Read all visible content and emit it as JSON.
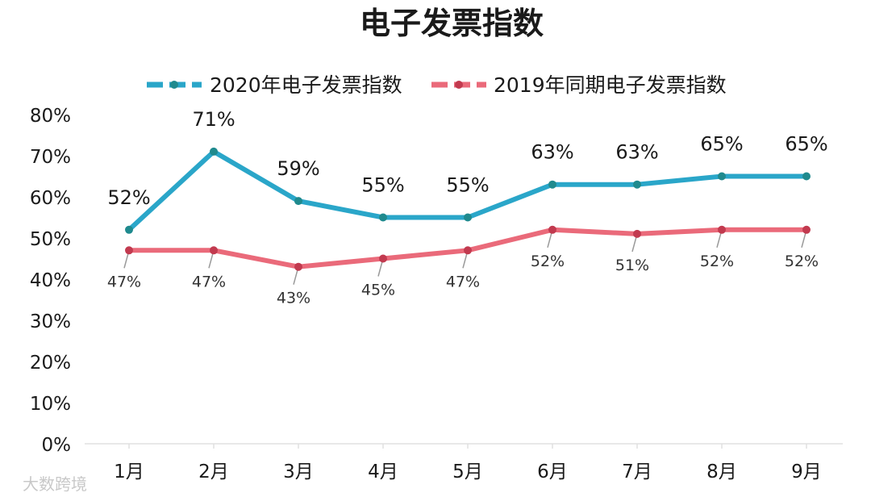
{
  "chart_data": {
    "type": "line",
    "title": "电子发票指数",
    "categories": [
      "1月",
      "2月",
      "3月",
      "4月",
      "5月",
      "6月",
      "7月",
      "8月",
      "9月"
    ],
    "series": [
      {
        "name": "2020年电子发票指数",
        "color": "#2aa6c9",
        "marker_color": "#1f8a8e",
        "values": [
          52,
          71,
          59,
          55,
          55,
          63,
          63,
          65,
          65
        ],
        "labels": [
          "52%",
          "71%",
          "59%",
          "55%",
          "55%",
          "63%",
          "63%",
          "65%",
          "65%"
        ]
      },
      {
        "name": "2019年同期电子发票指数",
        "color": "#ea6a7a",
        "marker_color": "#c23a4f",
        "values": [
          47,
          47,
          43,
          45,
          47,
          52,
          51,
          52,
          52
        ],
        "labels": [
          "47%",
          "47%",
          "43%",
          "45%",
          "47%",
          "52%",
          "51%",
          "52%",
          "52%"
        ]
      }
    ],
    "ylim": [
      0,
      80
    ],
    "yticks": [
      "0%",
      "10%",
      "20%",
      "30%",
      "40%",
      "50%",
      "60%",
      "70%",
      "80%"
    ],
    "xlabel": "",
    "ylabel": "",
    "legend": "top-center",
    "grid": false
  },
  "watermark": "大数跨境"
}
